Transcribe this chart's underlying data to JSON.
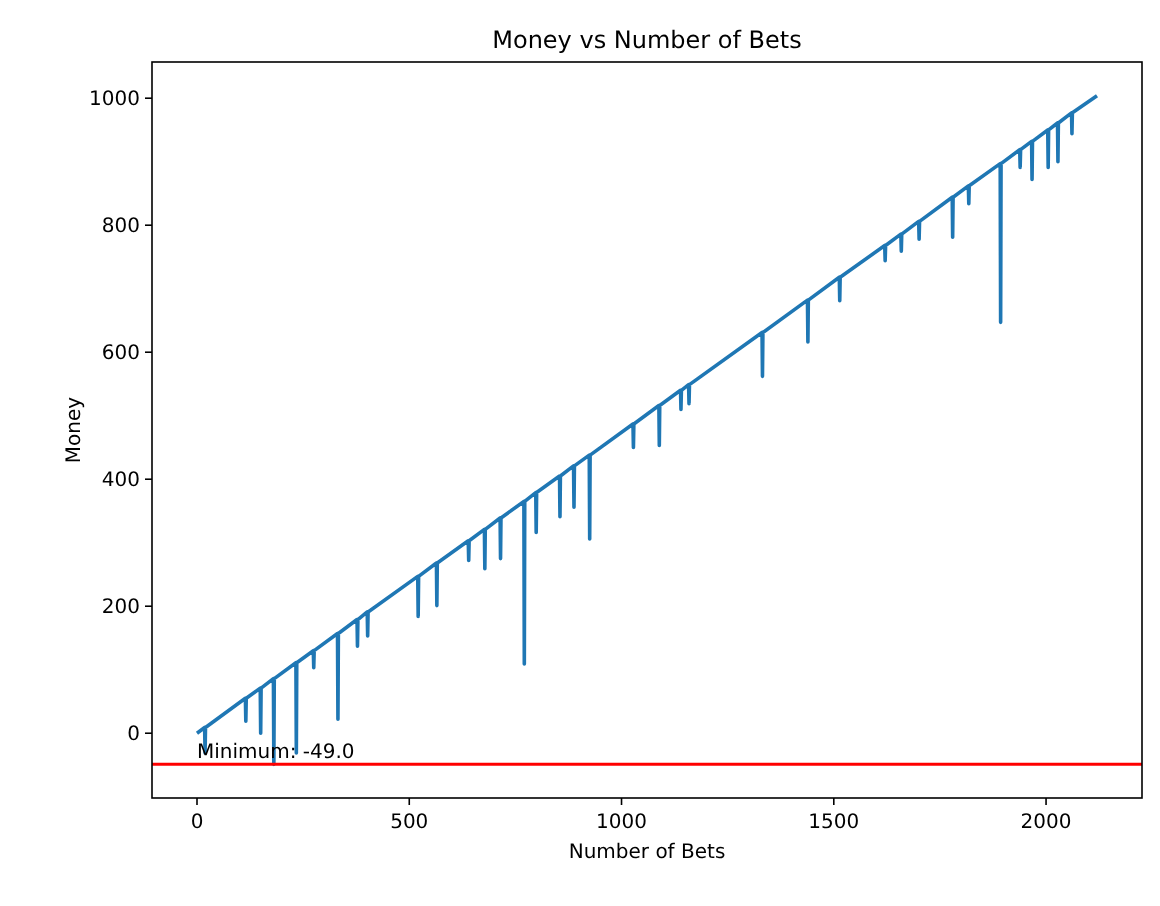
{
  "chart_data": {
    "type": "line",
    "title": "Money vs Number of Bets",
    "xlabel": "Number of Bets",
    "ylabel": "Money",
    "x": [
      0,
      18,
      19,
      20,
      114,
      115,
      116,
      149,
      150,
      151,
      180,
      181,
      182,
      233,
      234,
      235,
      274,
      275,
      276,
      331,
      332,
      333,
      377,
      378,
      379,
      401,
      402,
      403,
      520,
      521,
      522,
      564,
      565,
      566,
      639,
      640,
      641,
      677,
      678,
      679,
      714,
      715,
      716,
      770,
      771,
      772,
      798,
      799,
      800,
      854,
      855,
      856,
      887,
      888,
      889,
      924,
      925,
      926,
      1027,
      1028,
      1029,
      1088,
      1089,
      1090,
      1139,
      1140,
      1141,
      1158,
      1159,
      1160,
      1331,
      1332,
      1333,
      1438,
      1439,
      1440,
      1513,
      1514,
      1515,
      1620,
      1621,
      1622,
      1658,
      1659,
      1660,
      1700,
      1701,
      1702,
      1779,
      1780,
      1781,
      1817,
      1818,
      1819,
      1892,
      1893,
      1894,
      1938,
      1939,
      1940,
      1966,
      1967,
      1968,
      2004,
      2005,
      2006,
      2027,
      2028,
      2029,
      2060,
      2061,
      2062,
      2120
    ],
    "series": [
      {
        "color": "#1f77b4",
        "values": [
          0,
          9,
          -31,
          9,
          55,
          19,
          55,
          71,
          0,
          71,
          86,
          -49,
          86,
          111,
          -31,
          111,
          130,
          103,
          130,
          157,
          22,
          157,
          179,
          137,
          179,
          191,
          153,
          191,
          247,
          184,
          247,
          268,
          201,
          268,
          303,
          272,
          303,
          321,
          259,
          321,
          339,
          275,
          339,
          365,
          109,
          365,
          379,
          316,
          379,
          405,
          341,
          405,
          421,
          356,
          421,
          438,
          306,
          438,
          487,
          450,
          487,
          516,
          453,
          516,
          540,
          510,
          540,
          549,
          519,
          549,
          631,
          562,
          631,
          682,
          616,
          682,
          718,
          681,
          718,
          768,
          744,
          768,
          786,
          759,
          786,
          806,
          778,
          806,
          844,
          781,
          844,
          862,
          834,
          862,
          897,
          647,
          897,
          919,
          891,
          919,
          932,
          872,
          932,
          950,
          891,
          950,
          961,
          900,
          961,
          977,
          944,
          977,
          1004
        ]
      }
    ],
    "xlim": [
      -106,
      2226
    ],
    "ylim": [
      -102,
      1057
    ],
    "xticks": [
      0,
      500,
      1000,
      1500,
      2000
    ],
    "yticks": [
      0,
      200,
      400,
      600,
      800,
      1000
    ],
    "grid": false,
    "ref_lines": [
      {
        "axis": "y",
        "value": -49,
        "color": "#ff0000"
      }
    ],
    "annotations": [
      {
        "text": "Minimum: -49.0",
        "x": 0,
        "y": -49
      }
    ]
  }
}
